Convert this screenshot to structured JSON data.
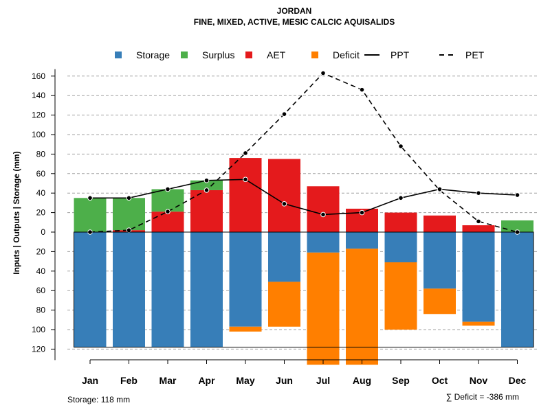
{
  "chart_data": {
    "type": "bar",
    "title": "JORDAN",
    "subtitle": "FINE, MIXED, ACTIVE, MESIC CALCIC AQUISALIDS",
    "ylabel": "Inputs | Outputs | Storage    (mm)",
    "ylim": [
      -135,
      165
    ],
    "yticks": [
      -120,
      -100,
      -80,
      -60,
      -40,
      -20,
      0,
      20,
      40,
      60,
      80,
      100,
      120,
      140,
      160
    ],
    "ytick_labels": [
      "120",
      "100",
      "80",
      "60",
      "40",
      "20",
      "0",
      "20",
      "40",
      "60",
      "80",
      "100",
      "120",
      "140",
      "160"
    ],
    "categories": [
      "Jan",
      "Feb",
      "Mar",
      "Apr",
      "May",
      "Jun",
      "Jul",
      "Aug",
      "Sep",
      "Oct",
      "Nov",
      "Dec"
    ],
    "storage_capacity": 118,
    "legend": [
      {
        "label": "Storage",
        "kind": "box",
        "color": "#377EB8"
      },
      {
        "label": "Surplus",
        "kind": "box",
        "color": "#4DAF4A"
      },
      {
        "label": "AET",
        "kind": "box",
        "color": "#E41A1C"
      },
      {
        "label": "Deficit",
        "kind": "box",
        "color": "#FF7F00"
      },
      {
        "label": "PPT",
        "kind": "solid"
      },
      {
        "label": "PET",
        "kind": "dashed"
      }
    ],
    "series": [
      {
        "name": "Storage",
        "color": "#377EB8",
        "values": [
          118,
          118,
          118,
          118,
          97,
          51,
          21,
          17,
          31,
          58,
          92,
          118
        ]
      },
      {
        "name": "Surplus",
        "color": "#4DAF4A",
        "values": [
          35,
          33,
          23,
          10,
          0,
          0,
          0,
          0,
          0,
          0,
          0,
          12
        ]
      },
      {
        "name": "AET",
        "color": "#E41A1C",
        "values": [
          0,
          2,
          21,
          43,
          76,
          75,
          47,
          24,
          20,
          17,
          7,
          0
        ]
      },
      {
        "name": "Deficit",
        "color": "#FF7F00",
        "values": [
          0,
          0,
          0,
          0,
          5,
          46,
          115,
          119,
          69,
          26,
          4,
          0
        ]
      },
      {
        "name": "PPT",
        "type": "line",
        "values": [
          35,
          35,
          44,
          53,
          54,
          29,
          18,
          20,
          35,
          44,
          40,
          38
        ]
      },
      {
        "name": "PET",
        "type": "line",
        "values": [
          0,
          2,
          21,
          43,
          81,
          121,
          163,
          146,
          88,
          43,
          11,
          0
        ]
      }
    ],
    "footer_left": "Storage: 118 mm",
    "footer_right": "∑ Deficit = -386 mm"
  }
}
